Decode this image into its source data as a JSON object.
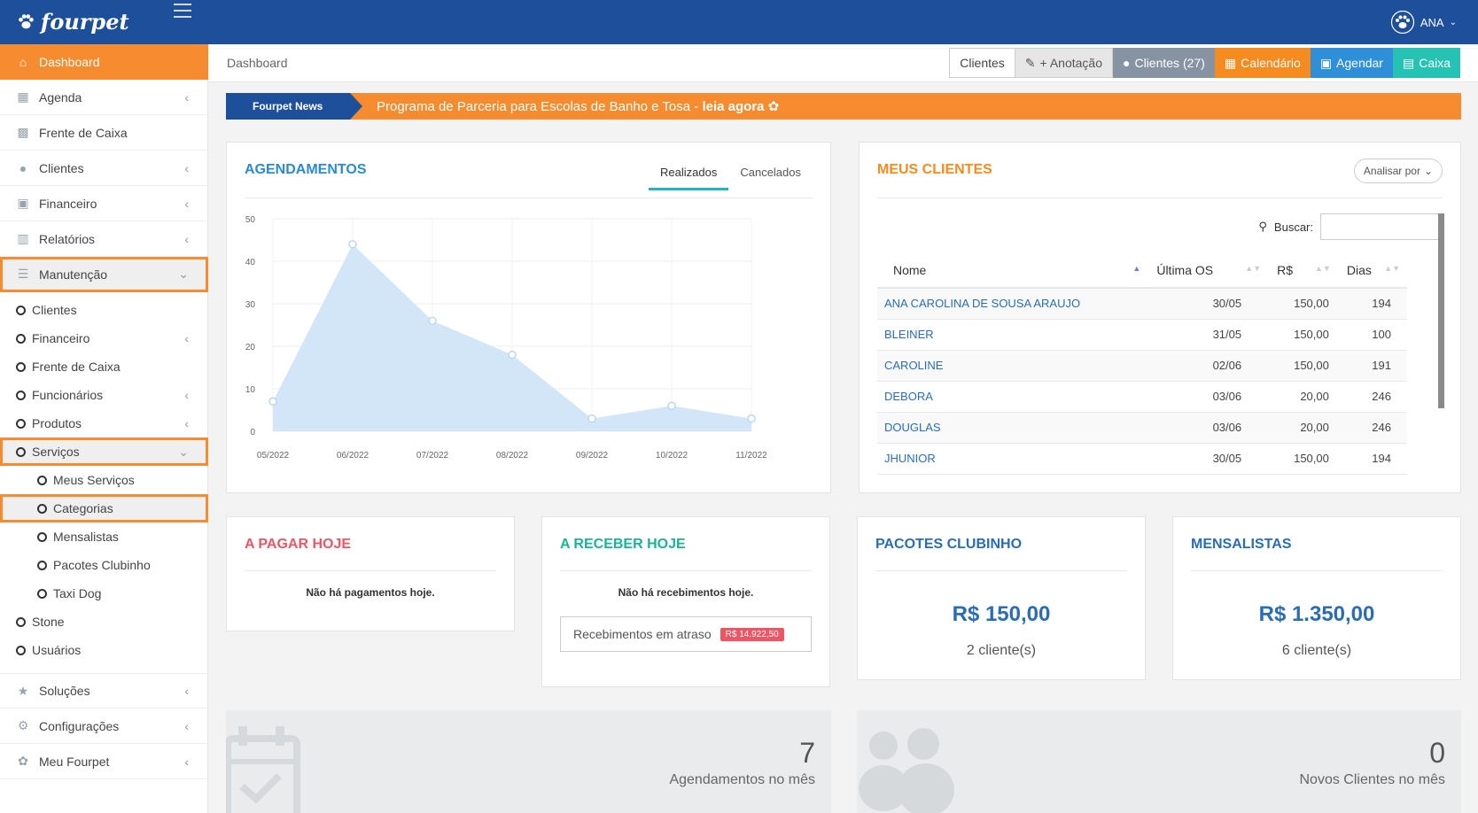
{
  "app": {
    "logo_text": "fourpet",
    "user_name": "ANA"
  },
  "sidebar": {
    "items": [
      {
        "label": "Dashboard"
      },
      {
        "label": "Agenda"
      },
      {
        "label": "Frente de Caixa"
      },
      {
        "label": "Clientes"
      },
      {
        "label": "Financeiro"
      },
      {
        "label": "Relatórios"
      },
      {
        "label": "Manutenção"
      }
    ],
    "manutencao_sub": [
      {
        "label": "Clientes"
      },
      {
        "label": "Financeiro"
      },
      {
        "label": "Frente de Caixa"
      },
      {
        "label": "Funcionários"
      },
      {
        "label": "Produtos"
      },
      {
        "label": "Serviços"
      }
    ],
    "servicos_sub": [
      {
        "label": "Meus Serviços"
      },
      {
        "label": "Categorias"
      },
      {
        "label": "Mensalistas"
      },
      {
        "label": "Pacotes Clubinho"
      },
      {
        "label": "Taxi Dog"
      }
    ],
    "manutencao_tail": [
      {
        "label": "Stone"
      },
      {
        "label": "Usuários"
      }
    ],
    "bottom": [
      {
        "label": "Soluções"
      },
      {
        "label": "Configurações"
      },
      {
        "label": "Meu Fourpet"
      }
    ]
  },
  "breadcrumb": "Dashboard",
  "toolbar": {
    "clientes": "Clientes",
    "anotacao": "+ Anotação",
    "clientes_count": "Clientes (27)",
    "calendario": "Calendário",
    "agendar": "Agendar",
    "caixa": "Caixa"
  },
  "news": {
    "tag": "Fourpet News",
    "text": "Programa de Parceria para Escolas de Banho e Tosa - ",
    "link": "leia agora"
  },
  "agendamentos": {
    "title": "AGENDAMENTOS",
    "tabs": [
      "Realizados",
      "Cancelados"
    ]
  },
  "chart_data": {
    "type": "area",
    "title": "",
    "categories": [
      "05/2022",
      "06/2022",
      "07/2022",
      "08/2022",
      "09/2022",
      "10/2022",
      "11/2022"
    ],
    "values": [
      7,
      44,
      26,
      18,
      3,
      6,
      3
    ],
    "ylim": [
      0,
      50
    ],
    "yticks": [
      0,
      10,
      20,
      30,
      40,
      50
    ],
    "grid": true,
    "color": "#d3e6f8"
  },
  "meus_clientes": {
    "title": "MEUS CLIENTES",
    "analisar": "Analisar por",
    "search_label": "Buscar:",
    "search_value": "",
    "columns": [
      "Nome",
      "Última OS",
      "R$",
      "Dias"
    ],
    "rows": [
      [
        "ANA CAROLINA DE SOUSA ARAUJO",
        "30/05",
        "150,00",
        "194"
      ],
      [
        "BLEINER",
        "31/05",
        "150,00",
        "100"
      ],
      [
        "CAROLINE",
        "02/06",
        "150,00",
        "191"
      ],
      [
        "DEBORA",
        "03/06",
        "20,00",
        "246"
      ],
      [
        "DOUGLAS",
        "03/06",
        "20,00",
        "246"
      ],
      [
        "JHUNIOR",
        "30/05",
        "150,00",
        "194"
      ]
    ]
  },
  "pagar": {
    "title": "A PAGAR HOJE",
    "msg": "Não há pagamentos hoje.",
    "color": "#ed5565"
  },
  "receber": {
    "title": "A RECEBER HOJE",
    "msg": "Não há recebimentos hoje.",
    "late_label": "Recebimentos em atraso",
    "late_value": "R$ 14.922,50",
    "color": "#1ab394"
  },
  "clubinho": {
    "title": "PACOTES CLUBINHO",
    "value": "R$ 150,00",
    "sub": "2 cliente(s)"
  },
  "mensalistas": {
    "title": "MENSALISTAS",
    "value": "R$ 1.350,00",
    "sub": "6 cliente(s)"
  },
  "stats": [
    {
      "num": "7",
      "label": "Agendamentos no mês"
    },
    {
      "num": "0",
      "label": "Novos Clientes no mês"
    }
  ],
  "colors": {
    "primary": "#1d4f9a",
    "accent": "#f68b2f",
    "blue_text": "#2a6db5"
  }
}
